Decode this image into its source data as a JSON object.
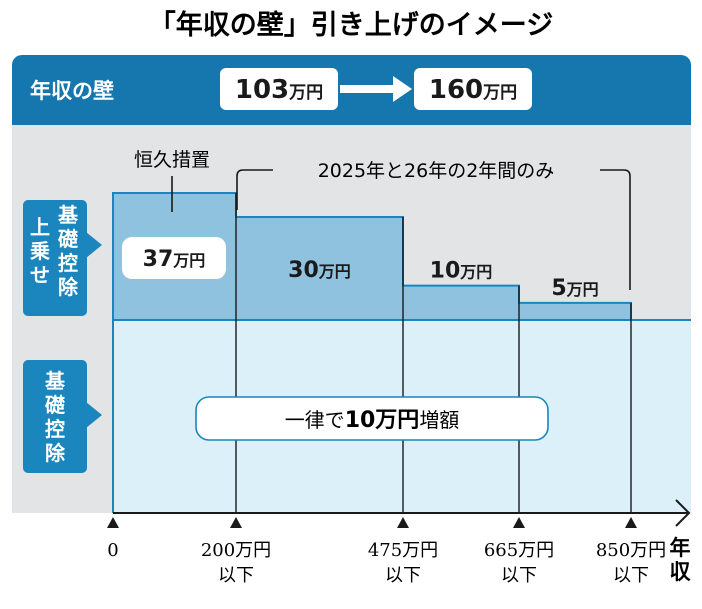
{
  "chart_data": {
    "type": "area",
    "title": "「年収の壁」引き上げのイメージ",
    "header": {
      "label": "年収の壁",
      "from": "103",
      "to": "160",
      "unit": "万円"
    },
    "annotations": {
      "permanent": "恒久措置",
      "temporary": "2025年と26年の2年間のみ",
      "base_text_pre": "一律で",
      "base_text_bold": "10万円",
      "base_text_post": "増額"
    },
    "side_labels": {
      "top_col1": "上乗せ",
      "top_col2": "基礎控除",
      "bottom": "基礎控除"
    },
    "x_axis": {
      "label": "年収",
      "ticks": [
        {
          "value": 0,
          "line1": "0",
          "line2": ""
        },
        {
          "value": 200,
          "line1": "200万円",
          "line2": "以下"
        },
        {
          "value": 475,
          "line1": "475万円",
          "line2": "以下"
        },
        {
          "value": 665,
          "line1": "665万円",
          "line2": "以下"
        },
        {
          "value": 850,
          "line1": "850万円",
          "line2": "以下"
        }
      ]
    },
    "series": [
      {
        "name": "上乗せ基礎控除",
        "segments": [
          {
            "x_from": 0,
            "x_to": 200,
            "value": 37,
            "label": "37万円"
          },
          {
            "x_from": 200,
            "x_to": 475,
            "value": 30,
            "label": "30万円"
          },
          {
            "x_from": 475,
            "x_to": 665,
            "value": 10,
            "label": "10万円"
          },
          {
            "x_from": 665,
            "x_to": 850,
            "value": 5,
            "label": "5万円"
          }
        ]
      },
      {
        "name": "基礎控除",
        "value": 10
      }
    ],
    "colors": {
      "header": "#1577ae",
      "bg_panel": "#e3e4e6",
      "top_fill": "#8ec2de",
      "base_fill": "#dcf0fa",
      "line": "#1a86bd",
      "tag": "#1a86bd"
    }
  }
}
